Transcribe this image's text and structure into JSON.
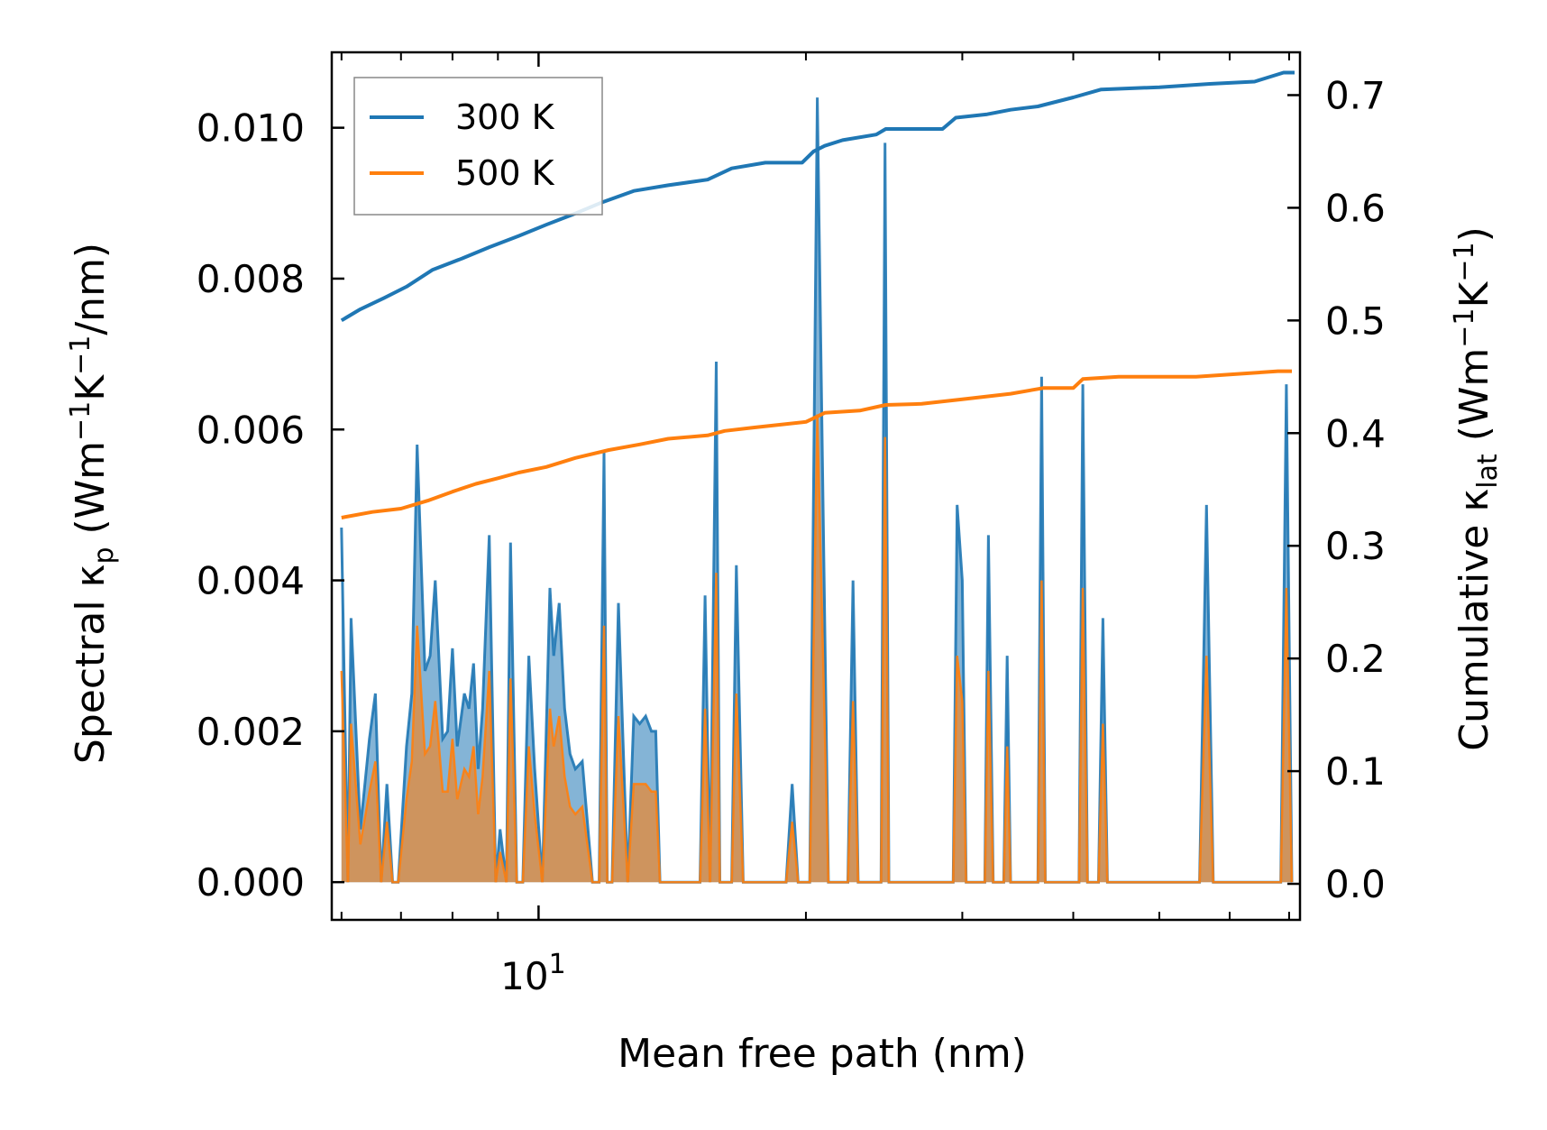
{
  "chart_data": {
    "type": "area",
    "xscale": "log",
    "xlabel": "Mean free path (nm)",
    "ylabel_left": {
      "main": "Spectral κ",
      "sub": "p",
      "unit": " (Wm",
      "sup1": "−1",
      "mid": "K",
      "sup2": "−1",
      "tail": "/nm)"
    },
    "ylabel_right": {
      "main": "Cumulative κ",
      "sub": "lat",
      "unit": " (Wm",
      "sup1": "−1",
      "mid": "K",
      "sup2": "−1",
      "tail": ")"
    },
    "xlim": [
      5.85,
      72.0
    ],
    "ylim_left": [
      -0.0005,
      0.011
    ],
    "ylim_right": [
      -0.032,
      0.738
    ],
    "xticks": [
      {
        "value": 10,
        "base": "10",
        "exp": "1"
      }
    ],
    "yticks_left": [
      "0.000",
      "0.002",
      "0.004",
      "0.006",
      "0.008",
      "0.010"
    ],
    "yticks_right": [
      "0.0",
      "0.1",
      "0.2",
      "0.3",
      "0.4",
      "0.5",
      "0.6",
      "0.7"
    ],
    "legend": {
      "location": "upper-left",
      "entries": [
        {
          "label": "300 K",
          "color": "#1f77b4"
        },
        {
          "label": "500 K",
          "color": "#ff7f0e"
        }
      ]
    },
    "series": [
      {
        "name": "300 K",
        "color": "#1f77b4",
        "spectral": [
          [
            6.0,
            0.0047
          ],
          [
            6.1,
            0.0
          ],
          [
            6.15,
            0.0035
          ],
          [
            6.3,
            0.0007
          ],
          [
            6.45,
            0.0019
          ],
          [
            6.55,
            0.0025
          ],
          [
            6.65,
            0.0
          ],
          [
            6.75,
            0.0013
          ],
          [
            6.85,
            0.0
          ],
          [
            6.95,
            0.0
          ],
          [
            7.1,
            0.0018
          ],
          [
            7.2,
            0.0025
          ],
          [
            7.3,
            0.0058
          ],
          [
            7.45,
            0.0028
          ],
          [
            7.55,
            0.003
          ],
          [
            7.65,
            0.004
          ],
          [
            7.8,
            0.0019
          ],
          [
            7.9,
            0.002
          ],
          [
            8.0,
            0.0031
          ],
          [
            8.1,
            0.0018
          ],
          [
            8.25,
            0.0025
          ],
          [
            8.35,
            0.0023
          ],
          [
            8.45,
            0.0029
          ],
          [
            8.55,
            0.0015
          ],
          [
            8.65,
            0.0023
          ],
          [
            8.8,
            0.0046
          ],
          [
            8.95,
            0.0
          ],
          [
            9.05,
            0.0007
          ],
          [
            9.2,
            0.0
          ],
          [
            9.3,
            0.0045
          ],
          [
            9.45,
            0.0
          ],
          [
            9.6,
            0.0
          ],
          [
            9.75,
            0.003
          ],
          [
            9.9,
            0.0015
          ],
          [
            10.1,
            0.0
          ],
          [
            10.3,
            0.0039
          ],
          [
            10.4,
            0.003
          ],
          [
            10.55,
            0.0037
          ],
          [
            10.7,
            0.0023
          ],
          [
            10.85,
            0.0017
          ],
          [
            11.0,
            0.0015
          ],
          [
            11.2,
            0.0016
          ],
          [
            11.5,
            0.0
          ],
          [
            11.7,
            0.0
          ],
          [
            11.85,
            0.0057
          ],
          [
            11.95,
            0.0
          ],
          [
            12.1,
            0.0
          ],
          [
            12.3,
            0.0037
          ],
          [
            12.6,
            0.0
          ],
          [
            12.8,
            0.0022
          ],
          [
            13.0,
            0.0021
          ],
          [
            13.2,
            0.0022
          ],
          [
            13.4,
            0.002
          ],
          [
            13.55,
            0.002
          ],
          [
            13.7,
            0.0
          ],
          [
            15.2,
            0.0
          ],
          [
            15.4,
            0.0038
          ],
          [
            15.6,
            0.0
          ],
          [
            15.85,
            0.0069
          ],
          [
            16.0,
            0.0
          ],
          [
            16.5,
            0.0
          ],
          [
            16.7,
            0.0042
          ],
          [
            17.0,
            0.0
          ],
          [
            19.0,
            0.0
          ],
          [
            19.3,
            0.0013
          ],
          [
            19.6,
            0.0
          ],
          [
            20.2,
            0.0
          ],
          [
            20.6,
            0.0104
          ],
          [
            21.2,
            0.0
          ],
          [
            22.3,
            0.0
          ],
          [
            22.6,
            0.004
          ],
          [
            22.9,
            0.0
          ],
          [
            24.3,
            0.0
          ],
          [
            24.55,
            0.0098
          ],
          [
            24.8,
            0.0
          ],
          [
            29.3,
            0.0
          ],
          [
            29.6,
            0.005
          ],
          [
            30.0,
            0.004
          ],
          [
            30.3,
            0.0
          ],
          [
            31.8,
            0.0
          ],
          [
            32.1,
            0.0046
          ],
          [
            32.5,
            0.0
          ],
          [
            33.4,
            0.0
          ],
          [
            33.7,
            0.003
          ],
          [
            34.0,
            0.0
          ],
          [
            36.5,
            0.0
          ],
          [
            36.85,
            0.0067
          ],
          [
            37.2,
            0.0
          ],
          [
            40.6,
            0.0
          ],
          [
            41.0,
            0.0066
          ],
          [
            41.5,
            0.0
          ],
          [
            42.7,
            0.0
          ],
          [
            43.2,
            0.0035
          ],
          [
            43.7,
            0.0
          ],
          [
            55.5,
            0.0
          ],
          [
            56.5,
            0.005
          ],
          [
            57.5,
            0.0
          ],
          [
            68.5,
            0.0
          ],
          [
            69.5,
            0.0066
          ],
          [
            70.5,
            0.0
          ]
        ],
        "cumulative": [
          [
            6.0,
            0.5
          ],
          [
            6.3,
            0.51
          ],
          [
            6.7,
            0.52
          ],
          [
            7.1,
            0.53
          ],
          [
            7.6,
            0.545
          ],
          [
            8.2,
            0.555
          ],
          [
            8.8,
            0.565
          ],
          [
            9.5,
            0.575
          ],
          [
            10.2,
            0.585
          ],
          [
            11.0,
            0.595
          ],
          [
            11.8,
            0.605
          ],
          [
            12.8,
            0.615
          ],
          [
            14.0,
            0.62
          ],
          [
            15.5,
            0.625
          ],
          [
            16.5,
            0.635
          ],
          [
            18.0,
            0.64
          ],
          [
            19.8,
            0.64
          ],
          [
            20.4,
            0.65
          ],
          [
            21.0,
            0.655
          ],
          [
            22.0,
            0.66
          ],
          [
            24.0,
            0.665
          ],
          [
            24.6,
            0.67
          ],
          [
            27.0,
            0.67
          ],
          [
            28.5,
            0.67
          ],
          [
            29.5,
            0.68
          ],
          [
            32.0,
            0.683
          ],
          [
            34.0,
            0.687
          ],
          [
            36.5,
            0.69
          ],
          [
            40.0,
            0.698
          ],
          [
            43.0,
            0.705
          ],
          [
            50.0,
            0.707
          ],
          [
            57.0,
            0.71
          ],
          [
            64.0,
            0.712
          ],
          [
            69.0,
            0.72
          ],
          [
            71.0,
            0.72
          ]
        ]
      },
      {
        "name": "500 K",
        "color": "#ff7f0e",
        "spectral": [
          [
            6.0,
            0.0028
          ],
          [
            6.1,
            0.0
          ],
          [
            6.15,
            0.0021
          ],
          [
            6.3,
            0.0005
          ],
          [
            6.45,
            0.0012
          ],
          [
            6.55,
            0.0016
          ],
          [
            6.65,
            0.0
          ],
          [
            6.75,
            0.0008
          ],
          [
            6.85,
            0.0
          ],
          [
            6.95,
            0.0
          ],
          [
            7.1,
            0.0011
          ],
          [
            7.2,
            0.0016
          ],
          [
            7.3,
            0.0034
          ],
          [
            7.45,
            0.0017
          ],
          [
            7.55,
            0.0018
          ],
          [
            7.65,
            0.0024
          ],
          [
            7.8,
            0.0012
          ],
          [
            7.9,
            0.0012
          ],
          [
            8.0,
            0.0019
          ],
          [
            8.1,
            0.0011
          ],
          [
            8.25,
            0.0015
          ],
          [
            8.35,
            0.0014
          ],
          [
            8.45,
            0.0018
          ],
          [
            8.55,
            0.0009
          ],
          [
            8.65,
            0.0014
          ],
          [
            8.8,
            0.0028
          ],
          [
            8.95,
            0.0
          ],
          [
            9.05,
            0.0004
          ],
          [
            9.2,
            0.0
          ],
          [
            9.3,
            0.0027
          ],
          [
            9.45,
            0.0
          ],
          [
            9.6,
            0.0
          ],
          [
            9.75,
            0.0018
          ],
          [
            9.9,
            0.0009
          ],
          [
            10.1,
            0.0
          ],
          [
            10.3,
            0.0023
          ],
          [
            10.4,
            0.0018
          ],
          [
            10.55,
            0.0022
          ],
          [
            10.7,
            0.0014
          ],
          [
            10.85,
            0.001
          ],
          [
            11.0,
            0.0009
          ],
          [
            11.2,
            0.001
          ],
          [
            11.5,
            0.0
          ],
          [
            11.7,
            0.0
          ],
          [
            11.85,
            0.0034
          ],
          [
            11.95,
            0.0
          ],
          [
            12.1,
            0.0
          ],
          [
            12.3,
            0.0022
          ],
          [
            12.6,
            0.0
          ],
          [
            12.8,
            0.0013
          ],
          [
            13.0,
            0.0013
          ],
          [
            13.2,
            0.0013
          ],
          [
            13.4,
            0.0012
          ],
          [
            13.55,
            0.0012
          ],
          [
            13.7,
            0.0
          ],
          [
            15.2,
            0.0
          ],
          [
            15.4,
            0.0023
          ],
          [
            15.6,
            0.0
          ],
          [
            15.85,
            0.0041
          ],
          [
            16.0,
            0.0
          ],
          [
            16.5,
            0.0
          ],
          [
            16.7,
            0.0025
          ],
          [
            17.0,
            0.0
          ],
          [
            19.0,
            0.0
          ],
          [
            19.3,
            0.0008
          ],
          [
            19.6,
            0.0
          ],
          [
            20.2,
            0.0
          ],
          [
            20.6,
            0.0062
          ],
          [
            21.2,
            0.0
          ],
          [
            22.3,
            0.0
          ],
          [
            22.6,
            0.0024
          ],
          [
            22.9,
            0.0
          ],
          [
            24.3,
            0.0
          ],
          [
            24.55,
            0.0059
          ],
          [
            24.8,
            0.0
          ],
          [
            29.3,
            0.0
          ],
          [
            29.6,
            0.003
          ],
          [
            30.0,
            0.0024
          ],
          [
            30.3,
            0.0
          ],
          [
            31.8,
            0.0
          ],
          [
            32.1,
            0.0028
          ],
          [
            32.5,
            0.0
          ],
          [
            33.4,
            0.0
          ],
          [
            33.7,
            0.0018
          ],
          [
            34.0,
            0.0
          ],
          [
            36.5,
            0.0
          ],
          [
            36.85,
            0.004
          ],
          [
            37.2,
            0.0
          ],
          [
            40.6,
            0.0
          ],
          [
            41.0,
            0.0039
          ],
          [
            41.5,
            0.0
          ],
          [
            42.7,
            0.0
          ],
          [
            43.2,
            0.0021
          ],
          [
            43.7,
            0.0
          ],
          [
            55.5,
            0.0
          ],
          [
            56.5,
            0.003
          ],
          [
            57.5,
            0.0
          ],
          [
            68.5,
            0.0
          ],
          [
            69.5,
            0.0039
          ],
          [
            70.5,
            0.0
          ]
        ],
        "cumulative": [
          [
            6.0,
            0.325
          ],
          [
            6.5,
            0.33
          ],
          [
            7.0,
            0.333
          ],
          [
            7.5,
            0.34
          ],
          [
            8.0,
            0.348
          ],
          [
            8.5,
            0.355
          ],
          [
            9.0,
            0.36
          ],
          [
            9.5,
            0.365
          ],
          [
            10.2,
            0.37
          ],
          [
            11.0,
            0.378
          ],
          [
            12.0,
            0.385
          ],
          [
            13.0,
            0.39
          ],
          [
            14.0,
            0.395
          ],
          [
            15.5,
            0.398
          ],
          [
            16.2,
            0.402
          ],
          [
            17.5,
            0.405
          ],
          [
            20.0,
            0.41
          ],
          [
            21.0,
            0.418
          ],
          [
            23.0,
            0.42
          ],
          [
            24.6,
            0.425
          ],
          [
            27.0,
            0.426
          ],
          [
            30.0,
            0.43
          ],
          [
            34.0,
            0.435
          ],
          [
            37.0,
            0.44
          ],
          [
            40.0,
            0.44
          ],
          [
            41.0,
            0.448
          ],
          [
            45.0,
            0.45
          ],
          [
            55.0,
            0.45
          ],
          [
            60.0,
            0.452
          ],
          [
            68.0,
            0.455
          ],
          [
            70.5,
            0.455
          ]
        ]
      }
    ]
  }
}
